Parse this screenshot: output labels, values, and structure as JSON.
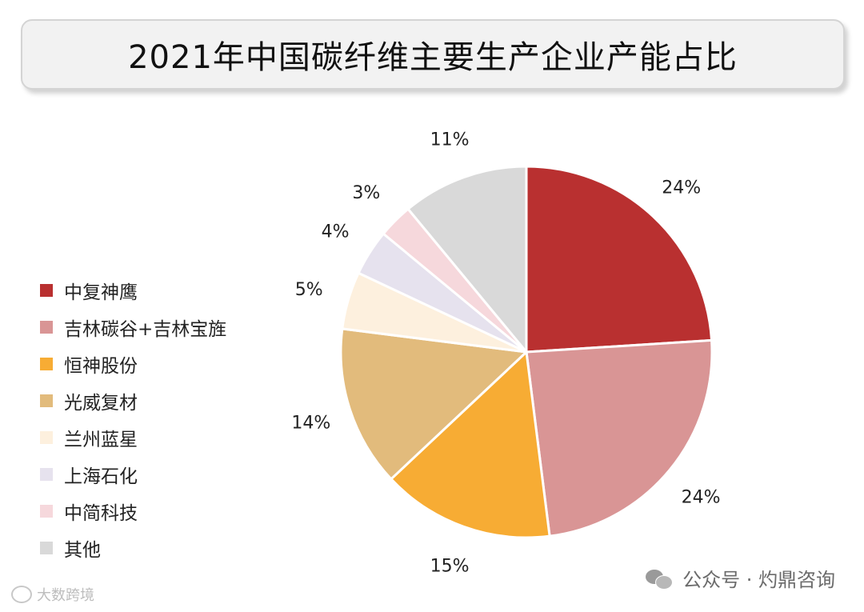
{
  "title": "2021年中国碳纤维主要生产企业产能占比",
  "chart_data": {
    "type": "pie",
    "categories": [
      "中复神鹰",
      "吉林碳谷+吉林宝旌",
      "恒神股份",
      "光威复材",
      "兰州蓝星",
      "上海石化",
      "中简科技",
      "其他"
    ],
    "values": [
      24,
      24,
      15,
      14,
      5,
      4,
      3,
      11
    ],
    "labels": [
      "24%",
      "24%",
      "15%",
      "14%",
      "5%",
      "4%",
      "3%",
      "11%"
    ],
    "colors": [
      "#b93030",
      "#d99595",
      "#f7ac34",
      "#e2bb7c",
      "#fdf0de",
      "#e6e2ee",
      "#f6d8dc",
      "#d9d9d9"
    ],
    "legend_position": "left"
  },
  "footer": {
    "watermark": "公众号 · 灼鼎咨询",
    "watermark_icon": "wechat-icon",
    "corner_logo_text": "大数跨境",
    "corner_logo_icon": "brand-logo-icon"
  }
}
